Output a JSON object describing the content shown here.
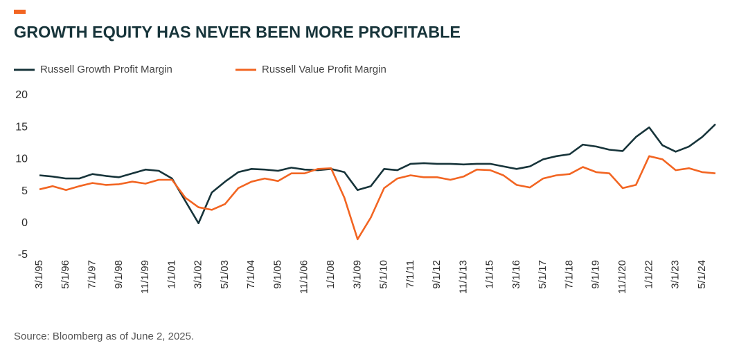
{
  "chart_data": {
    "type": "line",
    "title": "GROWTH EQUITY HAS NEVER BEEN MORE PROFITABLE",
    "source": "Source: Bloomberg as of June 2, 2025.",
    "categories": [
      "3/1/95",
      null,
      "5/1/96",
      null,
      "7/1/97",
      null,
      "9/1/98",
      null,
      "11/1/99",
      null,
      "1/1/01",
      null,
      "3/1/02",
      null,
      "5/1/03",
      null,
      "7/1/04",
      null,
      "9/1/05",
      null,
      "11/1/06",
      null,
      "1/1/08",
      null,
      "3/1/09",
      null,
      "5/1/10",
      null,
      "7/1/11",
      null,
      "9/1/12",
      null,
      "11/1/13",
      null,
      "1/1/15",
      null,
      "3/1/16",
      null,
      "5/1/17",
      null,
      "7/1/18",
      null,
      "9/1/19",
      null,
      "11/1/20",
      null,
      "1/1/22",
      null,
      "3/1/23",
      null,
      "5/1/24",
      null
    ],
    "series": [
      {
        "name": "Russell Growth Profit Margin",
        "color": "#17343a",
        "values": [
          7.5,
          7.3,
          7.0,
          7.0,
          7.7,
          7.4,
          7.2,
          7.8,
          8.4,
          8.2,
          7.0,
          3.5,
          0,
          4.8,
          6.5,
          8.0,
          8.5,
          8.4,
          8.2,
          8.7,
          8.4,
          8.3,
          8.5,
          8.0,
          5.2,
          5.8,
          8.5,
          8.3,
          9.3,
          9.4,
          9.3,
          9.3,
          9.2,
          9.3,
          9.3,
          8.9,
          8.5,
          8.9,
          10.0,
          10.5,
          10.8,
          12.3,
          12.0,
          11.5,
          11.3,
          13.5,
          15.0,
          12.2,
          11.2,
          12.0,
          13.5,
          15.5
        ]
      },
      {
        "name": "Russell Value Profit Margin",
        "color": "#f26522",
        "values": [
          5.3,
          5.8,
          5.2,
          5.8,
          6.3,
          6.0,
          6.1,
          6.5,
          6.2,
          6.8,
          6.8,
          4.0,
          2.5,
          2.1,
          3.0,
          5.5,
          6.5,
          7.0,
          6.6,
          7.8,
          7.8,
          8.5,
          8.6,
          4.0,
          -2.5,
          0.9,
          5.5,
          7.0,
          7.5,
          7.2,
          7.2,
          6.8,
          7.3,
          8.4,
          8.3,
          7.5,
          6.0,
          5.6,
          7.0,
          7.5,
          7.7,
          8.8,
          8.0,
          7.8,
          5.5,
          6.0,
          10.5,
          10.0,
          8.3,
          8.6,
          8.0,
          7.8
        ]
      }
    ],
    "ylim": [
      -5,
      20
    ],
    "yticks": [
      20,
      15,
      10,
      5,
      0,
      -5
    ],
    "grid": false
  }
}
